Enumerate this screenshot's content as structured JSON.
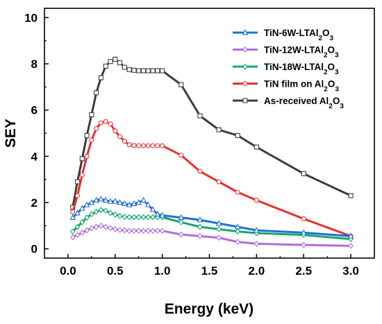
{
  "chart_data": {
    "type": "line",
    "xlabel": "Energy (keV)",
    "ylabel": "SEY",
    "xlim": [
      -0.25,
      3.25
    ],
    "ylim": [
      -0.4,
      10.4
    ],
    "xticks": [
      0.0,
      0.5,
      1.0,
      1.5,
      2.0,
      2.5,
      3.0
    ],
    "xtick_labels": [
      "0.0",
      "0.5",
      "1.0",
      "1.5",
      "2.0",
      "2.5",
      "3.0"
    ],
    "yticks": [
      0,
      2,
      4,
      6,
      8,
      10
    ],
    "ytick_labels": [
      "0",
      "2",
      "4",
      "6",
      "8",
      "10"
    ],
    "grid": false,
    "legend_position": "top-right",
    "series": [
      {
        "name": "TiN-6W-LTAl2O3",
        "legend": {
          "base": "TiN-6W-LTAl",
          "sub1": "2",
          "mid": "O",
          "sub2": "3",
          "tail": ""
        },
        "color": "#1f6fd6",
        "marker": "triangle",
        "x": [
          0.05,
          0.1,
          0.15,
          0.2,
          0.25,
          0.3,
          0.35,
          0.4,
          0.45,
          0.5,
          0.55,
          0.6,
          0.65,
          0.7,
          0.75,
          0.8,
          0.85,
          0.9,
          0.95,
          1.0,
          1.2,
          1.4,
          1.6,
          1.8,
          2.0,
          2.5,
          3.0
        ],
        "y": [
          1.35,
          1.55,
          1.75,
          1.9,
          2.0,
          2.1,
          2.15,
          2.1,
          2.05,
          2.05,
          2.0,
          1.95,
          1.9,
          1.95,
          2.0,
          2.1,
          1.9,
          1.7,
          1.5,
          1.45,
          1.35,
          1.25,
          1.1,
          0.95,
          0.8,
          0.7,
          0.55
        ]
      },
      {
        "name": "TiN-12W-LTAl2O3",
        "legend": {
          "base": "TiN-12W-LTAl",
          "sub1": "2",
          "mid": "O",
          "sub2": "3",
          "tail": ""
        },
        "color": "#b36be0",
        "marker": "diamond",
        "x": [
          0.05,
          0.1,
          0.15,
          0.2,
          0.25,
          0.3,
          0.35,
          0.4,
          0.45,
          0.5,
          0.55,
          0.6,
          0.65,
          0.7,
          0.75,
          0.8,
          0.85,
          0.9,
          0.95,
          1.0,
          1.2,
          1.4,
          1.6,
          1.8,
          2.0,
          2.5,
          3.0
        ],
        "y": [
          0.5,
          0.6,
          0.7,
          0.8,
          0.9,
          0.95,
          1.0,
          0.95,
          0.9,
          0.85,
          0.82,
          0.8,
          0.78,
          0.78,
          0.78,
          0.78,
          0.78,
          0.78,
          0.78,
          0.78,
          0.62,
          0.55,
          0.48,
          0.3,
          0.22,
          0.17,
          0.13
        ]
      },
      {
        "name": "TiN-18W-LTAl2O3",
        "legend": {
          "base": "TiN-18W-LTAl",
          "sub1": "2",
          "mid": "O",
          "sub2": "3",
          "tail": ""
        },
        "color": "#14a86a",
        "marker": "diamond",
        "x": [
          0.05,
          0.1,
          0.15,
          0.2,
          0.25,
          0.3,
          0.35,
          0.4,
          0.45,
          0.5,
          0.55,
          0.6,
          0.65,
          0.7,
          0.75,
          0.8,
          0.85,
          0.9,
          0.95,
          1.0,
          1.2,
          1.4,
          1.6,
          1.8,
          2.0,
          2.5,
          3.0
        ],
        "y": [
          0.75,
          0.95,
          1.15,
          1.35,
          1.5,
          1.6,
          1.68,
          1.65,
          1.55,
          1.48,
          1.42,
          1.38,
          1.37,
          1.37,
          1.37,
          1.37,
          1.37,
          1.37,
          1.37,
          1.37,
          1.15,
          0.95,
          0.85,
          0.75,
          0.68,
          0.6,
          0.42
        ]
      },
      {
        "name": "TiN film on Al2O3",
        "legend": {
          "base": "TiN film on Al",
          "sub1": "2",
          "mid": "O",
          "sub2": "3",
          "tail": ""
        },
        "color": "#e8302e",
        "marker": "circle",
        "x": [
          0.05,
          0.1,
          0.15,
          0.2,
          0.25,
          0.3,
          0.35,
          0.4,
          0.45,
          0.5,
          0.55,
          0.6,
          0.65,
          0.7,
          0.75,
          0.8,
          0.85,
          0.9,
          0.95,
          1.0,
          1.2,
          1.4,
          1.6,
          1.8,
          2.0,
          2.5,
          3.0
        ],
        "y": [
          1.6,
          2.3,
          3.2,
          4.0,
          4.7,
          5.2,
          5.45,
          5.5,
          5.4,
          5.1,
          4.85,
          4.65,
          4.5,
          4.47,
          4.46,
          4.46,
          4.46,
          4.46,
          4.46,
          4.46,
          4.05,
          3.35,
          2.9,
          2.45,
          2.1,
          1.3,
          0.55
        ]
      },
      {
        "name": "As-received Al2O3",
        "legend": {
          "base": "As-received Al",
          "sub1": "2",
          "mid": "O",
          "sub2": "3",
          "tail": ""
        },
        "color": "#3c3c3c",
        "marker": "square",
        "x": [
          0.05,
          0.1,
          0.15,
          0.2,
          0.25,
          0.3,
          0.35,
          0.4,
          0.45,
          0.5,
          0.55,
          0.6,
          0.65,
          0.7,
          0.75,
          0.8,
          0.85,
          0.9,
          0.95,
          1.0,
          1.2,
          1.4,
          1.6,
          1.8,
          2.0,
          2.5,
          3.0
        ],
        "y": [
          1.8,
          2.9,
          3.9,
          4.9,
          5.8,
          6.75,
          7.4,
          7.9,
          8.1,
          8.2,
          8.05,
          7.85,
          7.75,
          7.72,
          7.7,
          7.7,
          7.7,
          7.7,
          7.7,
          7.7,
          7.1,
          5.75,
          5.15,
          4.9,
          4.4,
          3.25,
          2.3
        ]
      }
    ]
  }
}
